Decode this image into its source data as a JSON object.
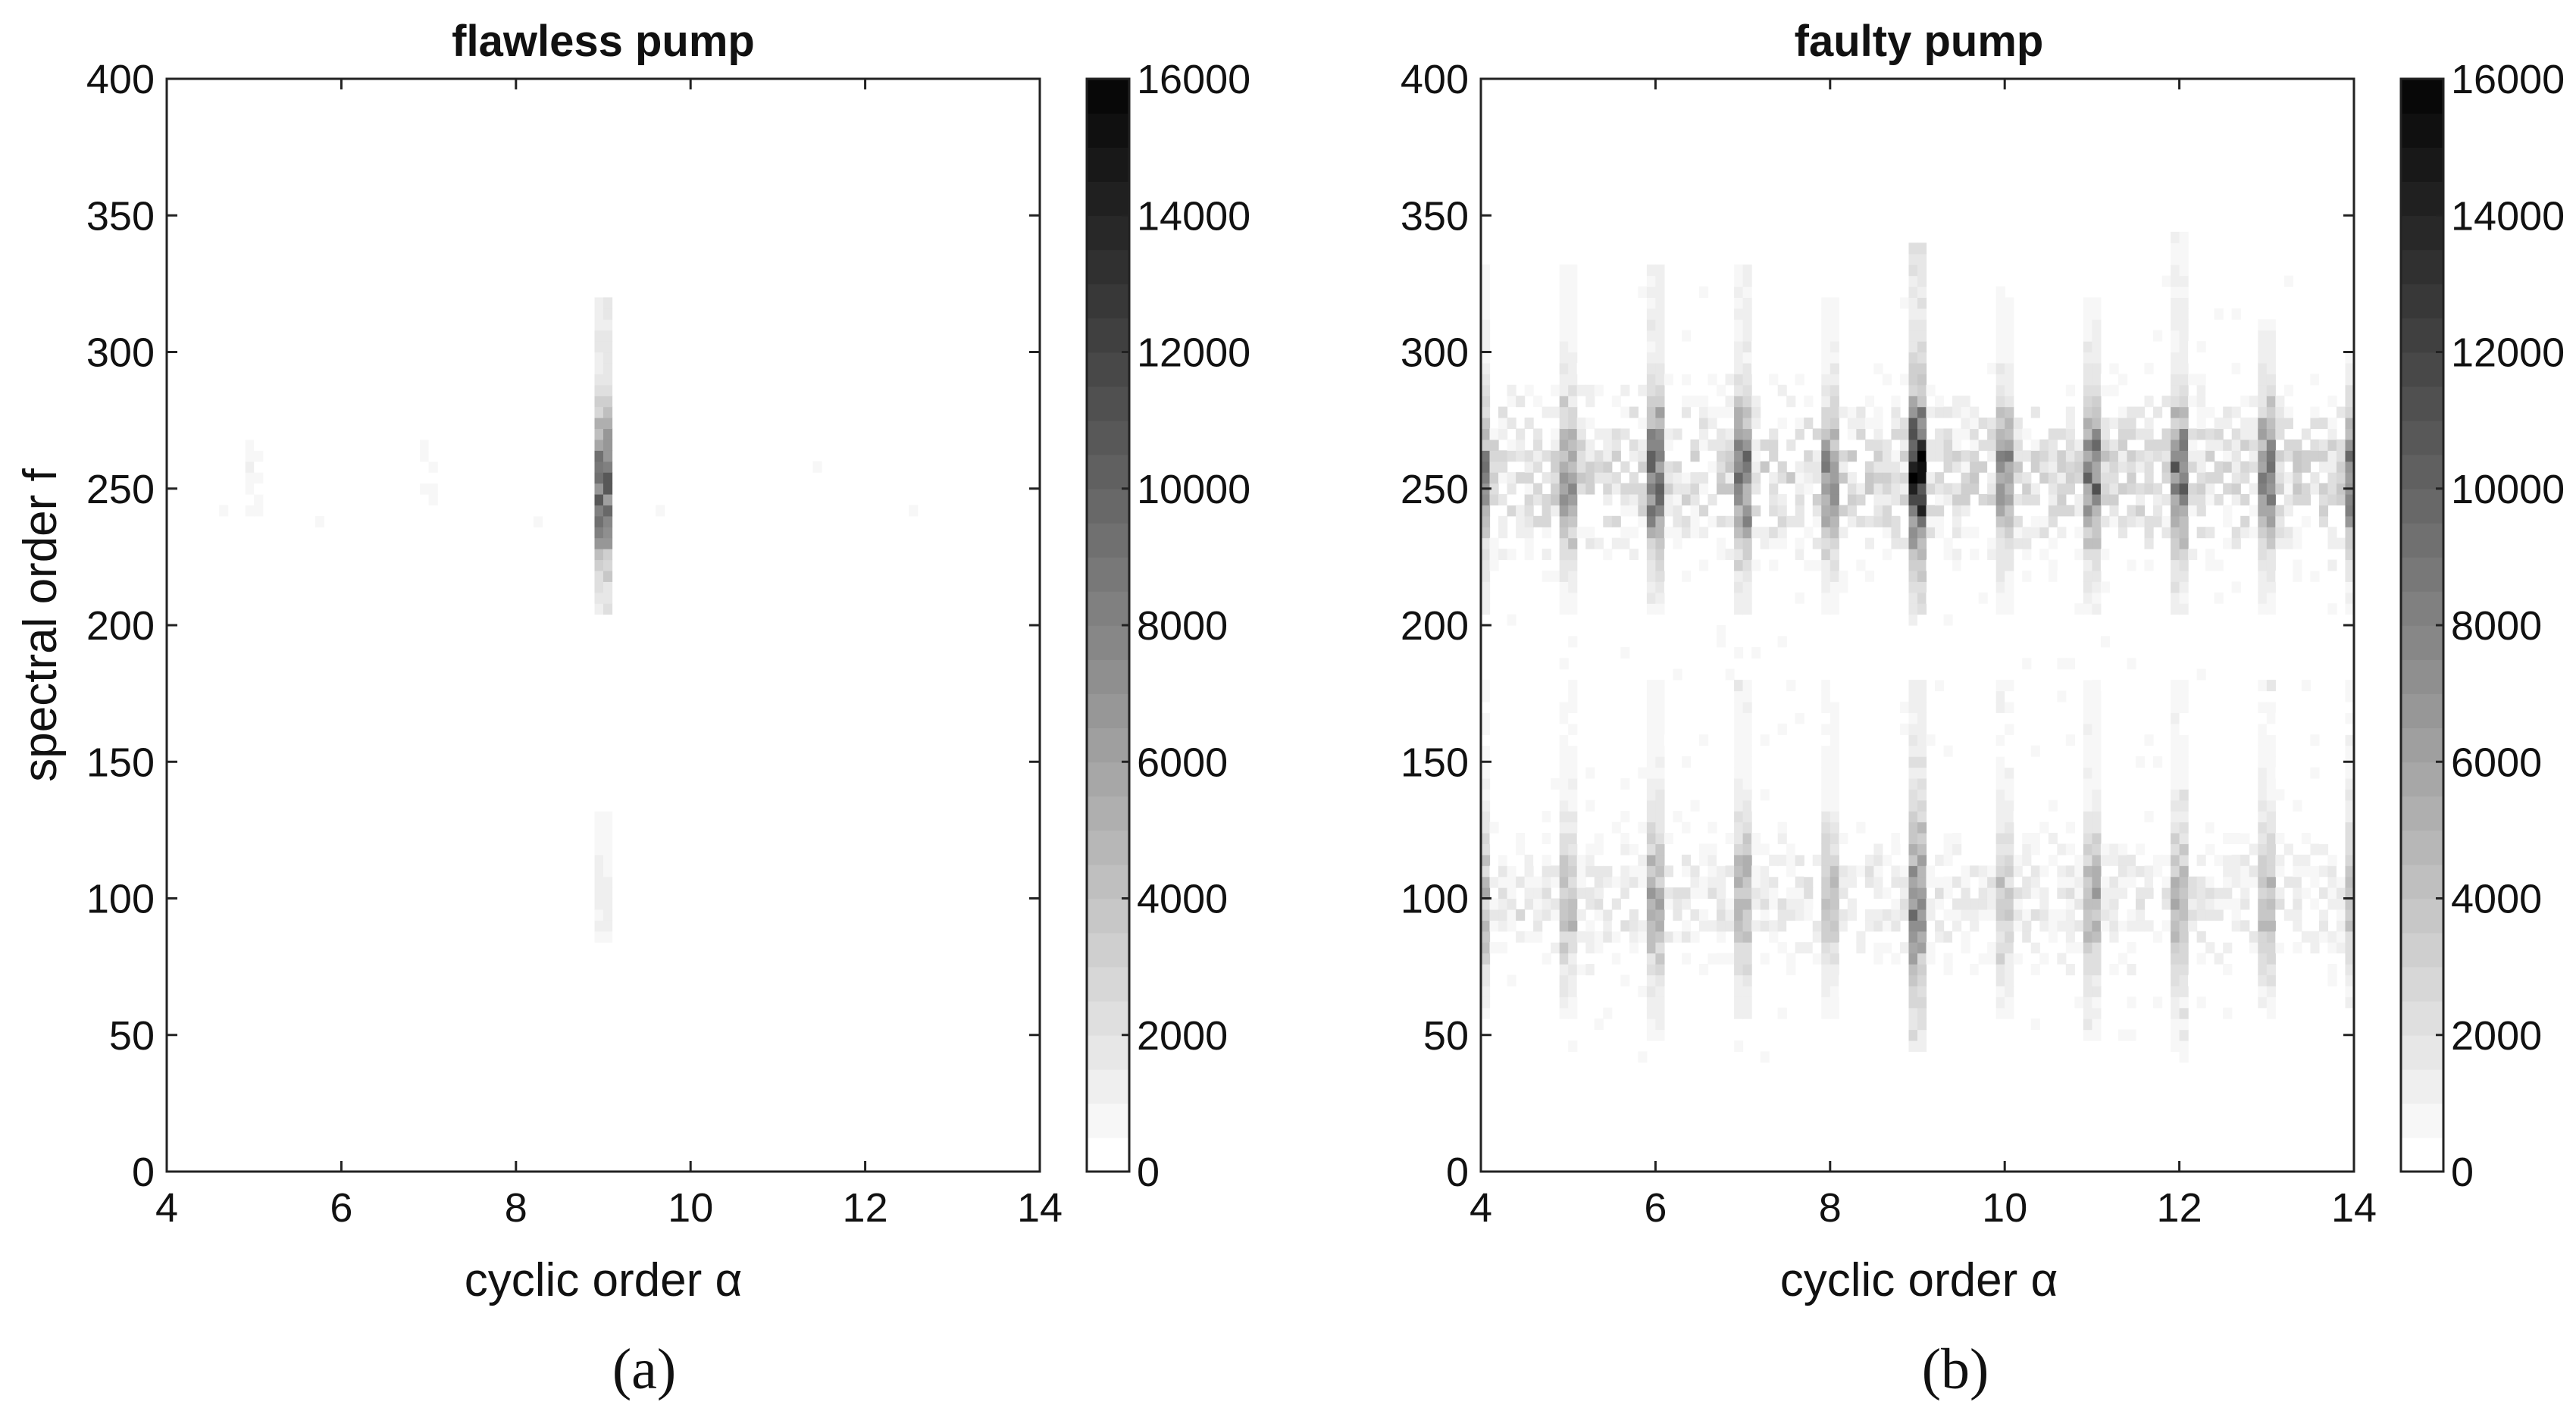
{
  "chart_data": [
    {
      "type": "heatmap",
      "title": "flawless pump",
      "xlabel": "cyclic order α",
      "ylabel": "spectral order f",
      "xlim": [
        4,
        14
      ],
      "ylim": [
        0,
        400
      ],
      "xticks": [
        "4",
        "6",
        "8",
        "10",
        "12",
        "14"
      ],
      "yticks": [
        "0",
        "50",
        "100",
        "150",
        "200",
        "250",
        "300",
        "350",
        "400"
      ],
      "colorbar": {
        "min": 0,
        "max": 16000,
        "ticks": [
          "0",
          "2000",
          "4000",
          "6000",
          "8000",
          "10000",
          "12000",
          "14000",
          "16000"
        ],
        "colormap": "gray-inverted",
        "levels": 32
      },
      "noise_level": 0.25,
      "features": [
        {
          "alpha": 9,
          "f_range": [
            200,
            320
          ],
          "f_center": 250,
          "peak": 11500
        },
        {
          "alpha": 9,
          "f_range": [
            85,
            150
          ],
          "f_center": 120,
          "peak": 2500
        },
        {
          "alpha": 5,
          "f_range": [
            240,
            310
          ],
          "f_center": 255,
          "peak": 800
        },
        {
          "alpha": 7,
          "f_range": [
            245,
            290
          ],
          "f_center": 260,
          "peak": 700
        }
      ],
      "caption": "(a)"
    },
    {
      "type": "heatmap",
      "title": "faulty pump",
      "xlabel": "cyclic order α",
      "ylabel": "",
      "xlim": [
        4,
        14
      ],
      "ylim": [
        0,
        400
      ],
      "xticks": [
        "4",
        "6",
        "8",
        "10",
        "12",
        "14"
      ],
      "yticks": [
        "0",
        "50",
        "100",
        "150",
        "200",
        "250",
        "300",
        "350",
        "400"
      ],
      "colorbar": {
        "min": 0,
        "max": 16000,
        "ticks": [
          "0",
          "2000",
          "4000",
          "6000",
          "8000",
          "10000",
          "12000",
          "14000",
          "16000"
        ],
        "colormap": "gray-inverted",
        "levels": 32
      },
      "noise_level": 1.0,
      "bands": [
        {
          "f_center": 255,
          "f_sigma": 30,
          "value": 2500
        },
        {
          "f_center": 100,
          "f_sigma": 25,
          "value": 1500
        }
      ],
      "features": [
        {
          "alpha": 4,
          "f_range": [
            55,
            330
          ],
          "f_center": 255,
          "peak": 7000
        },
        {
          "alpha": 5,
          "f_range": [
            55,
            330
          ],
          "f_center": 255,
          "peak": 6500
        },
        {
          "alpha": 6,
          "f_range": [
            50,
            330
          ],
          "f_center": 255,
          "peak": 9000
        },
        {
          "alpha": 7,
          "f_range": [
            55,
            330
          ],
          "f_center": 255,
          "peak": 8500
        },
        {
          "alpha": 8,
          "f_range": [
            55,
            320
          ],
          "f_center": 255,
          "peak": 6000
        },
        {
          "alpha": 9,
          "f_range": [
            45,
            340
          ],
          "f_center": 255,
          "peak": 15000
        },
        {
          "alpha": 10,
          "f_range": [
            55,
            320
          ],
          "f_center": 255,
          "peak": 6000
        },
        {
          "alpha": 11,
          "f_range": [
            50,
            320
          ],
          "f_center": 255,
          "peak": 8000
        },
        {
          "alpha": 12,
          "f_range": [
            45,
            345
          ],
          "f_center": 255,
          "peak": 8000
        },
        {
          "alpha": 13,
          "f_range": [
            60,
            310
          ],
          "f_center": 255,
          "peak": 7500
        },
        {
          "alpha": 14,
          "f_range": [
            60,
            300
          ],
          "f_center": 255,
          "peak": 7000
        }
      ],
      "caption": "(b)"
    }
  ]
}
